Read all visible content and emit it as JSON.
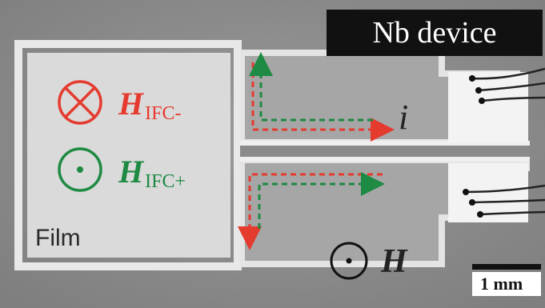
{
  "title": "Nb device",
  "labels": {
    "film": "Film",
    "h_ifc_minus": {
      "symbol": "H",
      "subscript": "IFC-"
    },
    "h_ifc_plus": {
      "symbol": "H",
      "subscript": "IFC+"
    },
    "current": "i",
    "field": "H",
    "scale_bar": "1 mm"
  },
  "colors": {
    "red": "#e53a2e",
    "green": "#1e8a43",
    "background_gray": "#8f8f8f",
    "film_light": "#dcdcdc"
  },
  "icons": {
    "h_ifc_minus": "circle-cross-icon",
    "h_ifc_plus": "circle-dot-icon",
    "field": "circle-dot-icon"
  }
}
